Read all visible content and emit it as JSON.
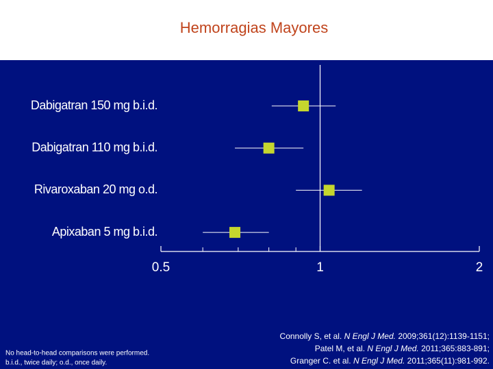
{
  "chart_data": {
    "type": "forest",
    "title": "Hemorragias Mayores",
    "categories": [
      "Dabigatran 150 mg b.i.d.",
      "Dabigatran 110 mg b.i.d.",
      "Rivaroxaban 20 mg o.d.",
      "Apixaban  5 mg b.i.d."
    ],
    "values": [
      0.93,
      0.8,
      1.04,
      0.69
    ],
    "lower": [
      0.81,
      0.69,
      0.9,
      0.6
    ],
    "upper": [
      1.07,
      0.93,
      1.2,
      0.8
    ],
    "color": "#c5d62e",
    "xscale": "log",
    "xlim": [
      0.5,
      2
    ],
    "xticks": [
      0.5,
      1,
      2
    ],
    "minor_xticks": [
      0.6,
      0.7,
      0.8,
      0.9
    ],
    "reference_line": 1,
    "footnote": [
      "No head-to-head comparisons were performed.",
      "b.i.d., twice daily; o.d., once daily."
    ],
    "references": [
      {
        "authors": "Connolly S, et al.",
        "journal": "N Engl J Med.",
        "citation": "2009;361(12):1139-1151;"
      },
      {
        "authors": "Patel M, et al.",
        "journal": "N Engl J Med.",
        "citation": "2011;365:883-891;"
      },
      {
        "authors": "Granger C. et al.",
        "journal": "N Engl J Med.",
        "citation": "2011;365(11):981-992."
      }
    ]
  }
}
